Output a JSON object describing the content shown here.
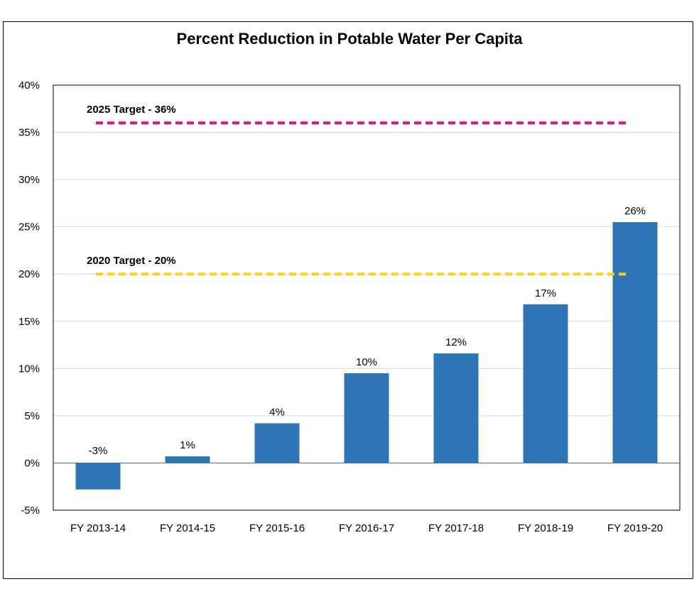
{
  "chart_data": {
    "type": "bar",
    "title": "Percent Reduction in Potable Water Per Capita",
    "xlabel": "",
    "ylabel": "",
    "categories": [
      "FY 2013-14",
      "FY 2014-15",
      "FY 2015-16",
      "FY 2016-17",
      "FY 2017-18",
      "FY 2018-19",
      "FY 2019-20"
    ],
    "values": [
      -2.8,
      0.7,
      4.2,
      9.5,
      11.6,
      16.8,
      25.5
    ],
    "data_labels": [
      "-3%",
      "1%",
      "4%",
      "10%",
      "12%",
      "17%",
      "26%"
    ],
    "ylim": [
      -5,
      40
    ],
    "yticks": [
      -5,
      0,
      5,
      10,
      15,
      20,
      25,
      30,
      35,
      40
    ],
    "ytick_labels": [
      "-5%",
      "0%",
      "5%",
      "10%",
      "15%",
      "20%",
      "25%",
      "30%",
      "35%",
      "40%"
    ],
    "grid": true,
    "legend": "none",
    "bar_color": "#2E75B6",
    "target_lines": [
      {
        "label": "2025 Target - 36%",
        "value": 36,
        "color": "#EC0A8C"
      },
      {
        "label": "2020 Target - 20%",
        "value": 20,
        "color": "#FFD000"
      }
    ]
  }
}
